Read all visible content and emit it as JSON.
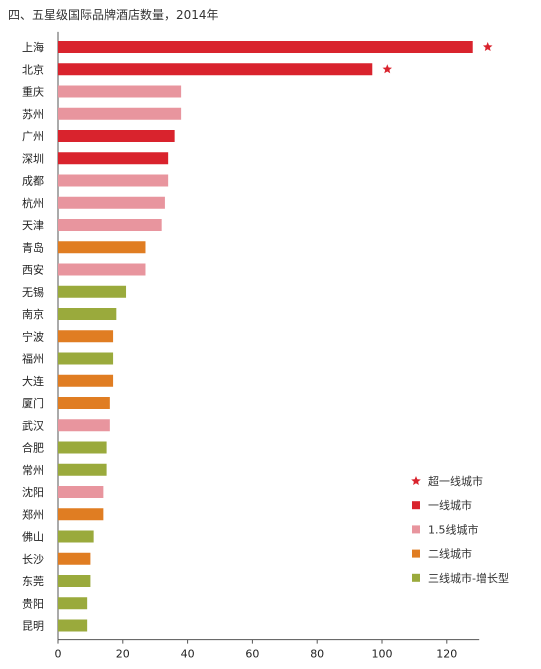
{
  "chart_data": {
    "type": "bar",
    "orientation": "horizontal",
    "title": "四、五星级国际品牌酒店数量，2014年",
    "xlabel": "",
    "ylabel": "",
    "xlim": [
      0,
      130
    ],
    "x_ticks": [
      "0",
      "20",
      "40",
      "60",
      "80",
      "100",
      "120"
    ],
    "grid": false,
    "legend_position": "bottom-right",
    "categories": [
      "上海",
      "北京",
      "重庆",
      "苏州",
      "广州",
      "深圳",
      "成都",
      "杭州",
      "天津",
      "青岛",
      "西安",
      "无锡",
      "南京",
      "宁波",
      "福州",
      "大连",
      "厦门",
      "武汉",
      "合肥",
      "常州",
      "沈阳",
      "郑州",
      "佛山",
      "长沙",
      "东莞",
      "贵阳",
      "昆明"
    ],
    "values": [
      128,
      97,
      38,
      38,
      36,
      34,
      34,
      33,
      32,
      27,
      27,
      21,
      18,
      17,
      17,
      17,
      16,
      16,
      15,
      15,
      14,
      14,
      11,
      10,
      10,
      9,
      9
    ],
    "groups": [
      "一线城市",
      "一线城市",
      "1.5线城市",
      "1.5线城市",
      "一线城市",
      "一线城市",
      "1.5线城市",
      "1.5线城市",
      "1.5线城市",
      "二线城市",
      "1.5线城市",
      "三线城市-增长型",
      "三线城市-增长型",
      "二线城市",
      "三线城市-增长型",
      "二线城市",
      "二线城市",
      "1.5线城市",
      "三线城市-增长型",
      "三线城市-增长型",
      "1.5线城市",
      "二线城市",
      "三线城市-增长型",
      "二线城市",
      "三线城市-增长型",
      "三线城市-增长型",
      "三线城市-增长型"
    ],
    "super_first_tier": [
      "上海",
      "北京"
    ],
    "legend": [
      {
        "label": "超一线城市",
        "marker": "star",
        "color": "#d9232d"
      },
      {
        "label": "一线城市",
        "marker": "bar",
        "color": "#d9232d"
      },
      {
        "label": "1.5线城市",
        "marker": "bar",
        "color": "#e8959e"
      },
      {
        "label": "二线城市",
        "marker": "bar",
        "color": "#e07d22"
      },
      {
        "label": "三线城市-增长型",
        "marker": "bar",
        "color": "#9aaa3c"
      }
    ],
    "colors": {
      "一线城市": "#d9232d",
      "1.5线城市": "#e8959e",
      "二线城市": "#e07d22",
      "三线城市-增长型": "#9aaa3c",
      "star": "#d9232d",
      "axis": "#555555"
    }
  }
}
